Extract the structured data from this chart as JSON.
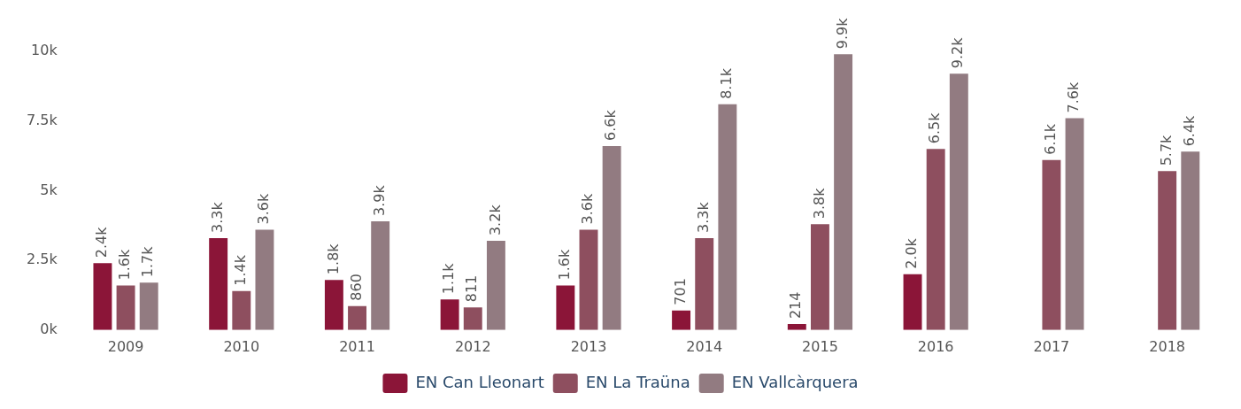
{
  "chart_data": {
    "type": "bar",
    "categories": [
      "2009",
      "2010",
      "2011",
      "2012",
      "2013",
      "2014",
      "2015",
      "2016",
      "2017",
      "2018"
    ],
    "series": [
      {
        "name": "EN Can Lleonart",
        "color": "#8b1538",
        "values": [
          2400,
          3300,
          1800,
          1100,
          1600,
          701,
          214,
          2000,
          null,
          null
        ],
        "value_labels": [
          "2.4k",
          "3.3k",
          "1.8k",
          "1.1k",
          "1.6k",
          "701",
          "214",
          "2.0k",
          null,
          null
        ]
      },
      {
        "name": "EN La Traüna",
        "color": "#8e4f5f",
        "values": [
          1600,
          1400,
          860,
          811,
          3600,
          3300,
          3800,
          6500,
          6100,
          5700
        ],
        "value_labels": [
          "1.6k",
          "1.4k",
          "860",
          "811",
          "3.6k",
          "3.3k",
          "3.8k",
          "6.5k",
          "6.1k",
          "5.7k"
        ]
      },
      {
        "name": "EN Vallcàrquera",
        "color": "#927b81",
        "values": [
          1700,
          3600,
          3900,
          3200,
          6600,
          8100,
          9900,
          9200,
          7600,
          6400
        ],
        "value_labels": [
          "1.7k",
          "3.6k",
          "3.9k",
          "3.2k",
          "6.6k",
          "8.1k",
          "9.9k",
          "9.2k",
          "7.6k",
          "6.4k"
        ]
      }
    ],
    "ylim": [
      0,
      10000
    ],
    "yticks": [
      {
        "value": 0,
        "label": "0k"
      },
      {
        "value": 2500,
        "label": "2.5k"
      },
      {
        "value": 5000,
        "label": "5k"
      },
      {
        "value": 7500,
        "label": "7.5k"
      },
      {
        "value": 10000,
        "label": "10k"
      }
    ],
    "grid": false,
    "legend": "bottom"
  }
}
